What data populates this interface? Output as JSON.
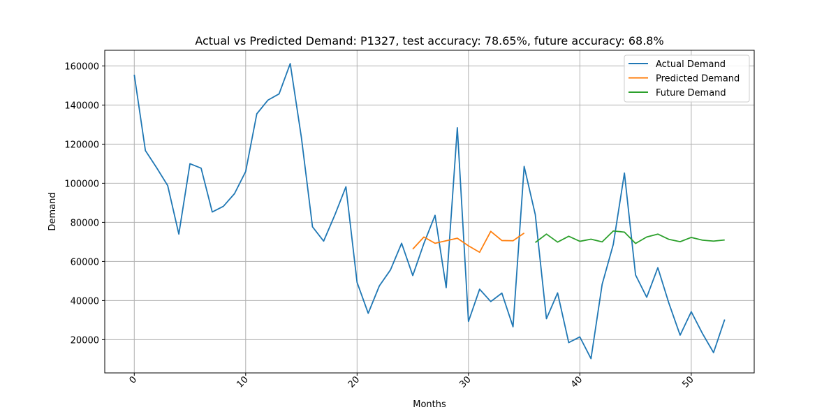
{
  "chart_data": {
    "type": "line",
    "title": "Actual vs Predicted Demand: P1327, test accuracy: 78.65%, future accuracy: 68.8%",
    "xlabel": "Months",
    "ylabel": "Demand",
    "xlim": [
      -2.65,
      55.65
    ],
    "ylim": [
      3000,
      168000
    ],
    "x_ticks": [
      0,
      10,
      20,
      30,
      40,
      50
    ],
    "y_ticks": [
      20000,
      40000,
      60000,
      80000,
      100000,
      120000,
      140000,
      160000
    ],
    "grid": true,
    "legend_position": "top-right",
    "series": [
      {
        "name": "Actual Demand",
        "color": "#1f77b4",
        "x": [
          0,
          1,
          2,
          3,
          4,
          5,
          6,
          7,
          8,
          9,
          10,
          11,
          12,
          13,
          14,
          15,
          16,
          17,
          18,
          19,
          20,
          21,
          22,
          23,
          24,
          25,
          26,
          27,
          28,
          29,
          30,
          31,
          32,
          33,
          34,
          35,
          36,
          37,
          38,
          39,
          40,
          41,
          42,
          43,
          44,
          45,
          46,
          47,
          48,
          49,
          50,
          51,
          52,
          53
        ],
        "values": [
          155500,
          116700,
          108000,
          98800,
          74000,
          110000,
          107700,
          85300,
          88200,
          94700,
          106000,
          135500,
          142500,
          145700,
          161200,
          123500,
          77700,
          70400,
          83700,
          98200,
          49300,
          33500,
          47500,
          55700,
          69300,
          52800,
          69200,
          83600,
          46600,
          128400,
          29300,
          45800,
          39500,
          43800,
          26600,
          108600,
          83900,
          30700,
          43900,
          18500,
          21400,
          10300,
          48300,
          68700,
          105200,
          53100,
          41700,
          56800,
          38500,
          22300,
          34300,
          23200,
          13400,
          30300
        ]
      },
      {
        "name": "Predicted Demand",
        "color": "#ff7f0e",
        "x": [
          25,
          26,
          27,
          28,
          29,
          30,
          31,
          32,
          33,
          34,
          35
        ],
        "values": [
          66300,
          72500,
          69300,
          70600,
          71900,
          68000,
          64700,
          75400,
          70700,
          70600,
          74500
        ]
      },
      {
        "name": "Future Demand",
        "color": "#2ca02c",
        "x": [
          36,
          37,
          38,
          39,
          40,
          41,
          42,
          43,
          44,
          45,
          46,
          47,
          48,
          49,
          50,
          51,
          52,
          53
        ],
        "values": [
          69700,
          74000,
          69900,
          72900,
          70300,
          71400,
          70000,
          75600,
          75000,
          69200,
          72500,
          74000,
          71300,
          70100,
          72300,
          70900,
          70400,
          71000
        ]
      }
    ]
  }
}
